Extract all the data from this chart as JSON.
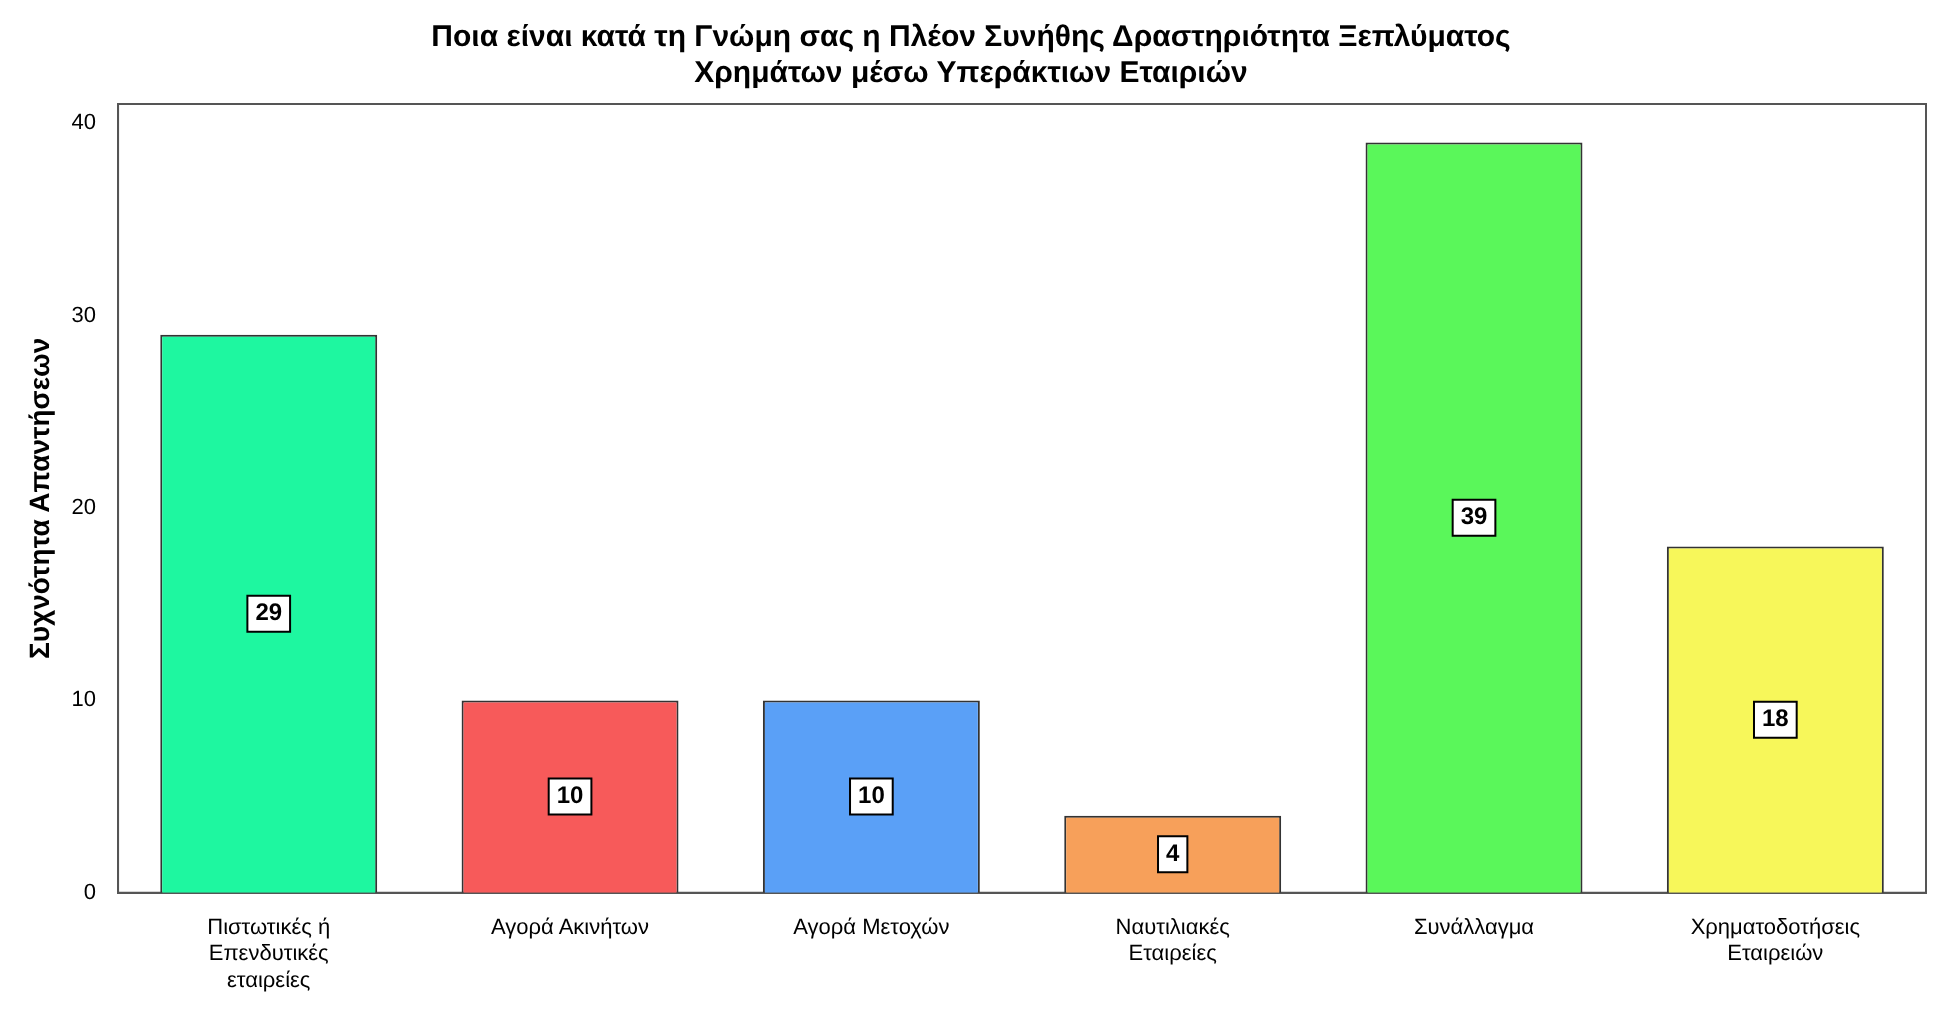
{
  "chart_data": {
    "type": "bar",
    "title": "Ποια είναι κατά τη Γνώμη σας η Πλέον Συνήθης Δραστηριότητα Ξεπλύματος Χρημάτων μέσω Υπεράκτιων Εταιριών",
    "ylabel": "Συχνότητα Απαντήσεων",
    "categories": [
      "Πιστωτικές ή Επενδυτικές εταιρείες",
      "Αγορά Ακινήτων",
      "Αγορά Μετοχών",
      "Ναυτιλιακές Εταιρείες",
      "Συνάλλαγμα",
      "Χρηματοδοτήσεις Εταιρειών"
    ],
    "values": [
      29,
      10,
      10,
      4,
      39,
      18
    ],
    "colors": [
      "#1ef7a0",
      "#f75a5a",
      "#5aa0f7",
      "#f7a05a",
      "#5af75a",
      "#f7f75a"
    ],
    "ylim": [
      0,
      41
    ],
    "yticks": [
      0,
      10,
      20,
      30,
      40
    ],
    "grid": false,
    "legend": false,
    "data_labels": true
  }
}
